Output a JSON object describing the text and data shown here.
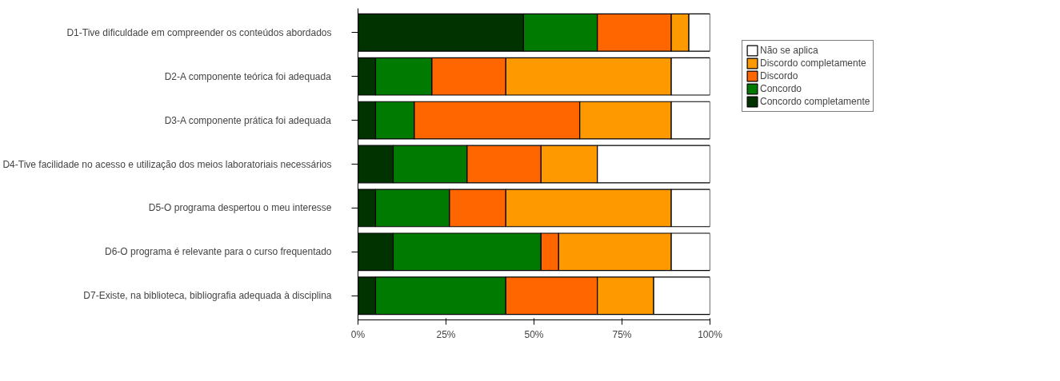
{
  "chart_data": {
    "type": "bar",
    "orientation": "horizontal",
    "stacked": true,
    "categories": [
      "D1-Tive dificuldade em compreender os conteúdos abordados",
      "D2-A componente teórica foi adequada",
      "D3-A componente prática foi adequada",
      "D4-Tive facilidade no acesso e utilização dos meios laboratoriais necessários",
      "D5-O programa despertou o meu interesse",
      "D6-O programa é relevante para o curso frequentado",
      "D7-Existe, na biblioteca, bibliografia adequada à disciplina"
    ],
    "series": [
      {
        "name": "Concordo completamente",
        "color": "#003300",
        "values": [
          47,
          5,
          5,
          10,
          5,
          10,
          5
        ]
      },
      {
        "name": "Concordo",
        "color": "#007a00",
        "values": [
          21,
          16,
          11,
          21,
          21,
          42,
          37
        ]
      },
      {
        "name": "Discordo",
        "color": "#ff6600",
        "values": [
          21,
          21,
          47,
          21,
          16,
          5,
          26
        ]
      },
      {
        "name": "Discordo completamente",
        "color": "#ff9900",
        "values": [
          5,
          47,
          26,
          16,
          47,
          32,
          16
        ]
      },
      {
        "name": "Não se aplica",
        "color": "#ffffff",
        "values": [
          6,
          11,
          11,
          32,
          11,
          11,
          16
        ]
      }
    ],
    "xlim": [
      0,
      100
    ],
    "xticks": [
      {
        "value": 0,
        "label": "0%"
      },
      {
        "value": 25,
        "label": "25%"
      },
      {
        "value": 50,
        "label": "50%"
      },
      {
        "value": 75,
        "label": "75%"
      },
      {
        "value": 100,
        "label": "100%"
      }
    ],
    "grid": false,
    "legend": "top right"
  }
}
